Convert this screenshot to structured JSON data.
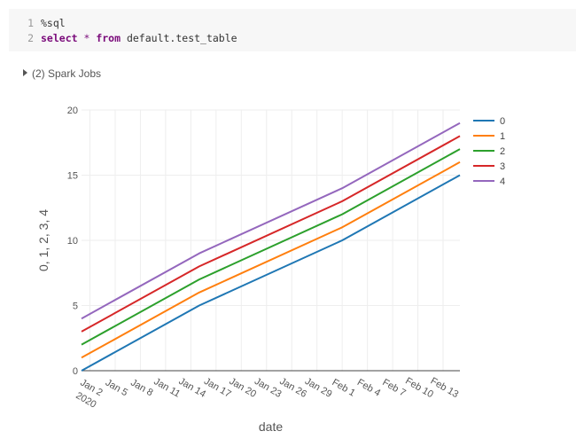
{
  "code": {
    "lines": [
      {
        "no": "1",
        "text": "%sql"
      },
      {
        "no": "2",
        "kw1": "select",
        "op": " * ",
        "kw2": "from",
        "rest": " default.test_table"
      }
    ]
  },
  "spark_jobs": {
    "label": "(2) Spark Jobs"
  },
  "colors": {
    "series": [
      "#1f77b4",
      "#ff7f0e",
      "#2ca02c",
      "#d62728",
      "#9467bd"
    ],
    "zero_line": "#444444",
    "grid": "#eeeeee"
  },
  "chart_data": {
    "type": "line",
    "xlabel": "date",
    "ylabel": "0, 1, 2, 3, 4",
    "x_range": [
      "2020-01-01",
      "2020-02-15"
    ],
    "ylim": [
      0,
      20
    ],
    "y_ticks": [
      "0",
      "5",
      "10",
      "15",
      "20"
    ],
    "x_ticks": [
      {
        "date": "2020-01-02",
        "label": "Jan 2",
        "sub": "2020"
      },
      {
        "date": "2020-01-05",
        "label": "Jan 5"
      },
      {
        "date": "2020-01-08",
        "label": "Jan 8"
      },
      {
        "date": "2020-01-11",
        "label": "Jan 11"
      },
      {
        "date": "2020-01-14",
        "label": "Jan 14"
      },
      {
        "date": "2020-01-17",
        "label": "Jan 17"
      },
      {
        "date": "2020-01-20",
        "label": "Jan 20"
      },
      {
        "date": "2020-01-23",
        "label": "Jan 23"
      },
      {
        "date": "2020-01-26",
        "label": "Jan 26"
      },
      {
        "date": "2020-01-29",
        "label": "Jan 29"
      },
      {
        "date": "2020-02-01",
        "label": "Feb 1"
      },
      {
        "date": "2020-02-04",
        "label": "Feb 4"
      },
      {
        "date": "2020-02-07",
        "label": "Feb 7"
      },
      {
        "date": "2020-02-10",
        "label": "Feb 10"
      },
      {
        "date": "2020-02-13",
        "label": "Feb 13"
      }
    ],
    "x": [
      "2020-01-01",
      "2020-01-15",
      "2020-02-01",
      "2020-02-15"
    ],
    "legend_placement": "top-right",
    "grid": true,
    "series": [
      {
        "name": "0",
        "values": [
          0,
          5,
          10,
          15
        ]
      },
      {
        "name": "1",
        "values": [
          1,
          6,
          11,
          16
        ]
      },
      {
        "name": "2",
        "values": [
          2,
          7,
          12,
          17
        ]
      },
      {
        "name": "3",
        "values": [
          3,
          8,
          13,
          18
        ]
      },
      {
        "name": "4",
        "values": [
          4,
          9,
          14,
          19
        ]
      }
    ]
  }
}
